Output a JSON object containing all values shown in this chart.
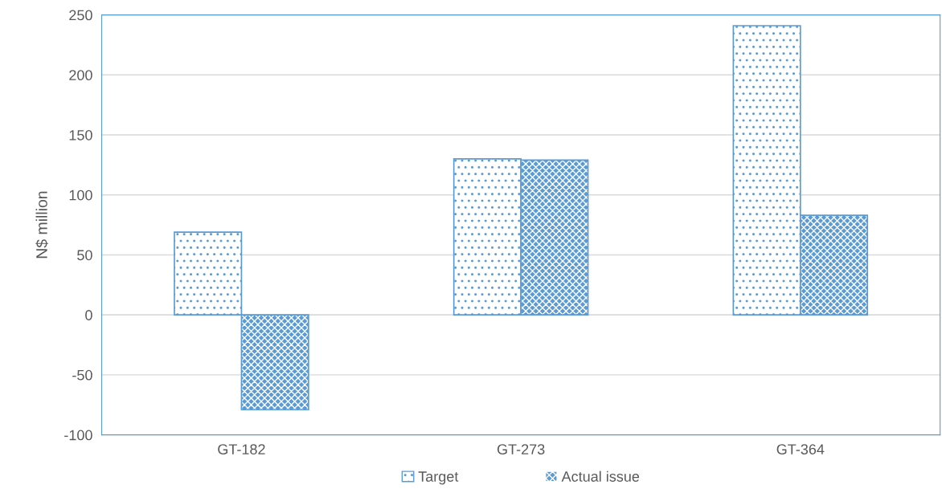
{
  "chart_data": {
    "type": "bar",
    "ylabel": "N$ million",
    "categories": [
      "GT-182",
      "GT-273",
      "GT-364"
    ],
    "series": [
      {
        "name": "Target",
        "color": "#5b9bd5",
        "values": [
          69,
          130,
          241
        ]
      },
      {
        "name": "Actual issue",
        "color": "#5b9bd5",
        "values": [
          -79,
          129,
          83
        ]
      }
    ],
    "ylim": [
      -100,
      250
    ],
    "yticks": [
      -100,
      -50,
      0,
      50,
      100,
      150,
      200,
      250
    ],
    "grid": "y",
    "legend": "bottom"
  }
}
